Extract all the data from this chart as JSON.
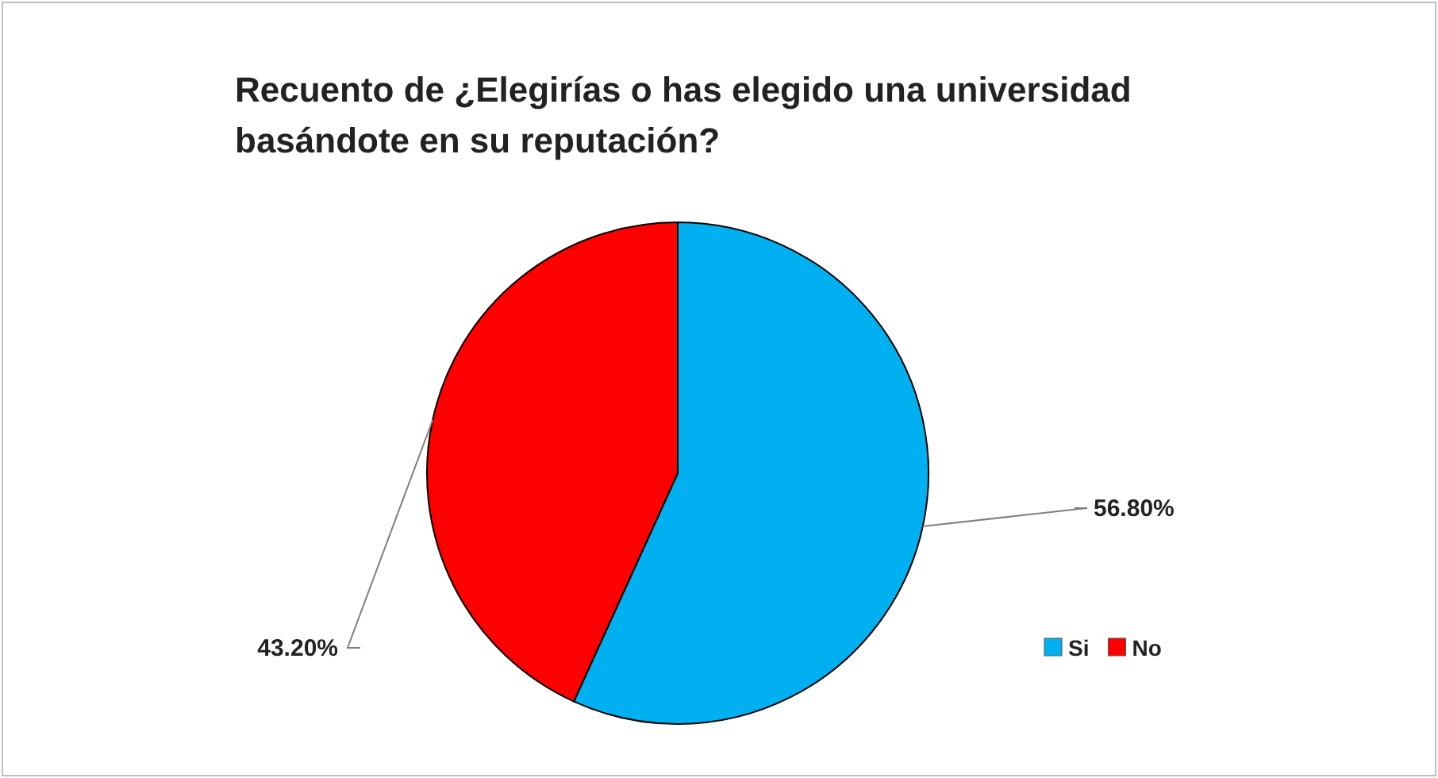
{
  "chart_data": {
    "type": "pie",
    "title": "Recuento de ¿Elegirías o has elegido una universidad basándote en su reputación?",
    "categories": [
      "Si",
      "No"
    ],
    "values": [
      56.8,
      43.2
    ],
    "value_labels": [
      "56.80%",
      "43.20%"
    ],
    "colors": [
      "#00b0f0",
      "#ff0000"
    ],
    "legend": "bottom right"
  }
}
